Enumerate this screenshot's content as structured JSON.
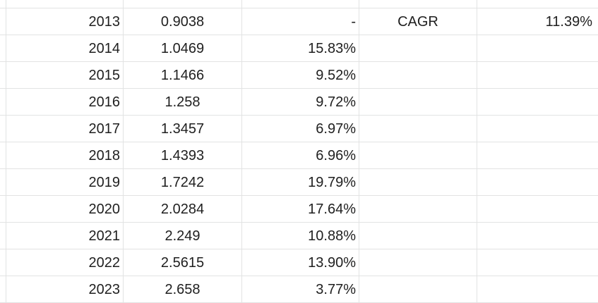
{
  "rows": [
    {
      "year": "2013",
      "value": "0.9038",
      "growth": "-",
      "label": "CAGR",
      "label_value": "11.39%"
    },
    {
      "year": "2014",
      "value": "1.0469",
      "growth": "15.83%",
      "label": "",
      "label_value": ""
    },
    {
      "year": "2015",
      "value": "1.1466",
      "growth": "9.52%",
      "label": "",
      "label_value": ""
    },
    {
      "year": "2016",
      "value": "1.258",
      "growth": "9.72%",
      "label": "",
      "label_value": ""
    },
    {
      "year": "2017",
      "value": "1.3457",
      "growth": "6.97%",
      "label": "",
      "label_value": ""
    },
    {
      "year": "2018",
      "value": "1.4393",
      "growth": "6.96%",
      "label": "",
      "label_value": ""
    },
    {
      "year": "2019",
      "value": "1.7242",
      "growth": "19.79%",
      "label": "",
      "label_value": ""
    },
    {
      "year": "2020",
      "value": "2.0284",
      "growth": "17.64%",
      "label": "",
      "label_value": ""
    },
    {
      "year": "2021",
      "value": "2.249",
      "growth": "10.88%",
      "label": "",
      "label_value": ""
    },
    {
      "year": "2022",
      "value": "2.5615",
      "growth": "13.90%",
      "label": "",
      "label_value": ""
    },
    {
      "year": "2023",
      "value": "2.658",
      "growth": "3.77%",
      "label": "",
      "label_value": ""
    }
  ],
  "colors": {
    "gridline": "#e2e3e3",
    "text": "#1f1f1f",
    "background": "#ffffff"
  }
}
